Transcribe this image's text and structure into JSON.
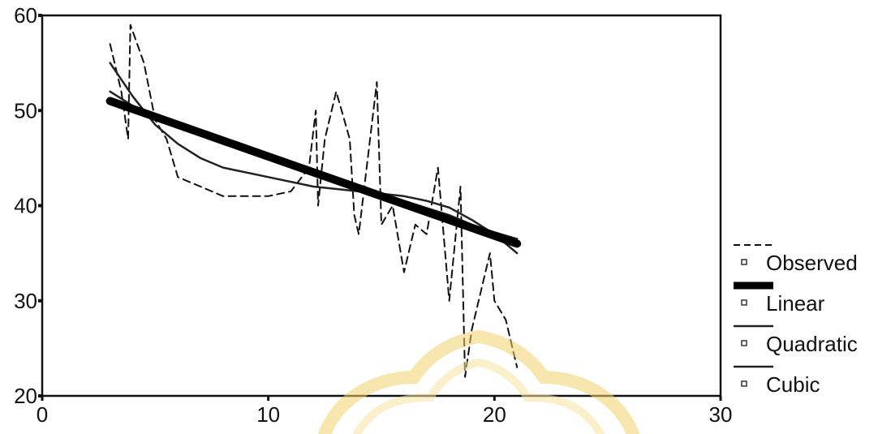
{
  "chart_data": {
    "type": "line",
    "title": "",
    "xlabel": "",
    "ylabel": "",
    "xlim": [
      0,
      30
    ],
    "ylim": [
      20,
      60
    ],
    "x_ticks": [
      0,
      10,
      20,
      30
    ],
    "y_ticks": [
      20,
      30,
      40,
      50,
      60
    ],
    "grid": false,
    "legend_position": "right-bottom",
    "series": [
      {
        "name": "Observed",
        "style": "dashed",
        "color": "#111111",
        "points": [
          [
            3.0,
            57.0
          ],
          [
            3.2,
            55.0
          ],
          [
            3.5,
            52.0
          ],
          [
            3.8,
            47.0
          ],
          [
            3.9,
            59.0
          ],
          [
            4.5,
            55.0
          ],
          [
            5.0,
            49.0
          ],
          [
            5.5,
            47.0
          ],
          [
            6.0,
            43.0
          ],
          [
            7.0,
            42.0
          ],
          [
            8.0,
            41.0
          ],
          [
            9.0,
            41.0
          ],
          [
            10.0,
            41.0
          ],
          [
            11.0,
            41.5
          ],
          [
            11.8,
            44.0
          ],
          [
            12.1,
            50.0
          ],
          [
            12.2,
            40.0
          ],
          [
            12.5,
            47.0
          ],
          [
            13.0,
            52.0
          ],
          [
            13.6,
            47.0
          ],
          [
            13.8,
            39.0
          ],
          [
            14.0,
            37.0
          ],
          [
            14.8,
            53.0
          ],
          [
            15.0,
            38.0
          ],
          [
            15.5,
            40.0
          ],
          [
            16.0,
            33.0
          ],
          [
            16.5,
            38.0
          ],
          [
            17.0,
            37.0
          ],
          [
            17.5,
            44.0
          ],
          [
            18.0,
            30.0
          ],
          [
            18.5,
            42.0
          ],
          [
            18.7,
            22.0
          ],
          [
            19.0,
            27.0
          ],
          [
            19.8,
            35.0
          ],
          [
            20.0,
            30.0
          ],
          [
            20.5,
            28.0
          ],
          [
            21.0,
            23.0
          ]
        ]
      },
      {
        "name": "Linear",
        "style": "solid",
        "color": "#000000",
        "width": "heavy",
        "points": [
          [
            3.0,
            51.0
          ],
          [
            21.0,
            36.0
          ]
        ]
      },
      {
        "name": "Quadratic",
        "style": "solid",
        "color": "#222222",
        "points": [
          [
            3.0,
            52.0
          ],
          [
            4.0,
            50.5
          ],
          [
            5.0,
            49.5
          ],
          [
            6.0,
            48.6
          ],
          [
            8.0,
            46.5
          ],
          [
            10.0,
            45.0
          ],
          [
            12.0,
            43.5
          ],
          [
            14.0,
            42.0
          ],
          [
            16.0,
            40.5
          ],
          [
            18.0,
            39.0
          ],
          [
            19.0,
            38.0
          ],
          [
            20.0,
            37.2
          ],
          [
            21.0,
            36.5
          ]
        ]
      },
      {
        "name": "Cubic",
        "style": "solid",
        "color": "#222222",
        "points": [
          [
            3.0,
            55.0
          ],
          [
            4.0,
            51.5
          ],
          [
            5.0,
            48.5
          ],
          [
            6.0,
            46.5
          ],
          [
            7.0,
            45.0
          ],
          [
            8.0,
            44.0
          ],
          [
            10.0,
            43.0
          ],
          [
            12.0,
            42.0
          ],
          [
            14.0,
            41.5
          ],
          [
            16.0,
            41.0
          ],
          [
            17.0,
            40.5
          ],
          [
            18.0,
            39.8
          ],
          [
            19.0,
            38.5
          ],
          [
            20.0,
            37.0
          ],
          [
            21.0,
            35.0
          ]
        ]
      }
    ]
  }
}
